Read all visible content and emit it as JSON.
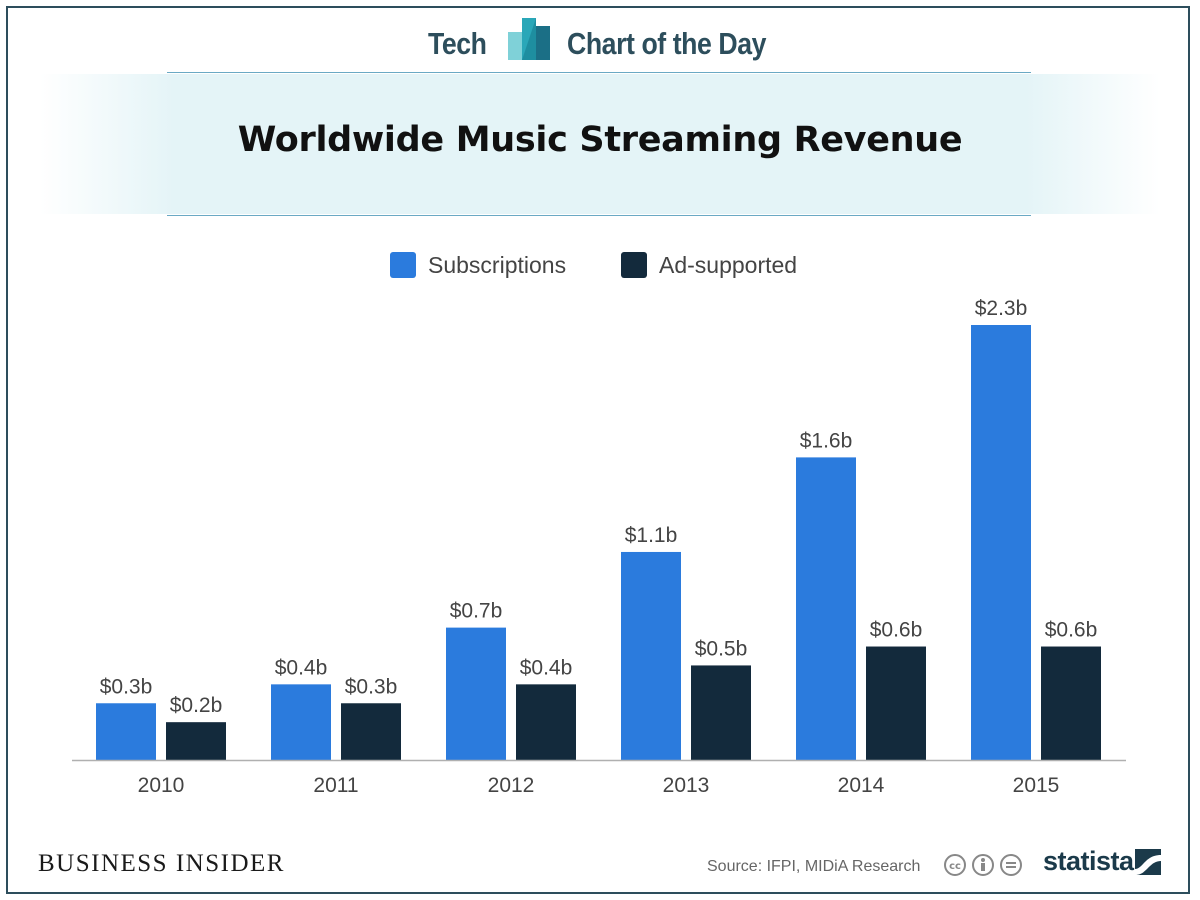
{
  "header": {
    "left_text": "Tech",
    "right_text": "Chart of the Day"
  },
  "footer": {
    "brand": "BUSINESS INSIDER",
    "source": "Source: IFPI, MIDiA Research",
    "license_icons": [
      "cc-icon",
      "by-icon",
      "nd-icon"
    ],
    "statista": "statista"
  },
  "colors": {
    "subscriptions": "#2b7bdd",
    "ad_supported": "#132a3c",
    "header_text": "#2d4e5c"
  },
  "chart_data": {
    "type": "bar",
    "title": "Worldwide Music Streaming Revenue",
    "xlabel": "",
    "ylabel": "",
    "categories": [
      "2010",
      "2011",
      "2012",
      "2013",
      "2014",
      "2015"
    ],
    "series": [
      {
        "name": "Subscriptions",
        "values": [
          0.3,
          0.4,
          0.7,
          1.1,
          1.6,
          2.3
        ],
        "labels": [
          "$0.3b",
          "$0.4b",
          "$0.7b",
          "$1.1b",
          "$1.6b",
          "$2.3b"
        ]
      },
      {
        "name": "Ad-supported",
        "values": [
          0.2,
          0.3,
          0.4,
          0.5,
          0.6,
          0.6
        ],
        "labels": [
          "$0.2b",
          "$0.3b",
          "$0.4b",
          "$0.5b",
          "$0.6b",
          "$0.6b"
        ]
      }
    ],
    "ylim": [
      0,
      2.3
    ],
    "grid": false,
    "legend": "top-center"
  }
}
